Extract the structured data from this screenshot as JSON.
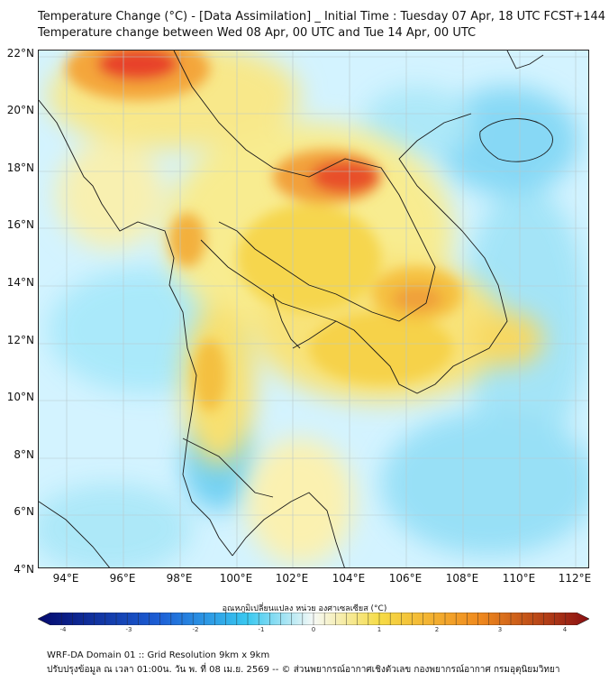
{
  "header": {
    "title_line1": "Temperature Change (°C) - [Data Assimilation] _ Initial Time : Tuesday 07 Apr, 18 UTC FCST+144",
    "title_line2": "Temperature change between Wed 08 Apr, 00 UTC and Tue 14 Apr, 00 UTC"
  },
  "map": {
    "lat_labels": [
      "22°N",
      "20°N",
      "18°N",
      "16°N",
      "14°N",
      "12°N",
      "10°N",
      "8°N",
      "6°N",
      "4°N"
    ],
    "lon_labels": [
      "94°E",
      "96°E",
      "98°E",
      "100°E",
      "102°E",
      "104°E",
      "106°E",
      "108°E",
      "110°E",
      "112°E"
    ],
    "lat_range": [
      4,
      22.3
    ],
    "lon_range": [
      93,
      112.5
    ]
  },
  "colorbar": {
    "label": "อุณหภูมิเปลี่ยนแปลง หน่วย องศาเซลเซียส (°C)",
    "ticks": [
      "-4",
      "-3",
      "-2",
      "-1",
      "0",
      "1",
      "2",
      "3",
      "4"
    ],
    "range": [
      -4,
      4
    ],
    "colors": {
      "min": "#050a6e",
      "cold": "#1d5fd6",
      "cool": "#39c8f0",
      "neutral": "#f6f9f6",
      "warm": "#f6dc46",
      "hot": "#f08a1e",
      "max": "#8a0e12"
    }
  },
  "footer": {
    "line1": "WRF-DA Domain 01 :: Grid Resolution 9km x 9km",
    "line2": "ปรับปรุงข้อมูล ณ เวลา 01:00น. วัน พ. ที่ 08 เม.ย. 2569 -- © ส่วนพยากรณ์อากาศเชิงตัวเลข กองพยากรณ์อากาศ กรมอุตุนิยมวิทยา"
  }
}
